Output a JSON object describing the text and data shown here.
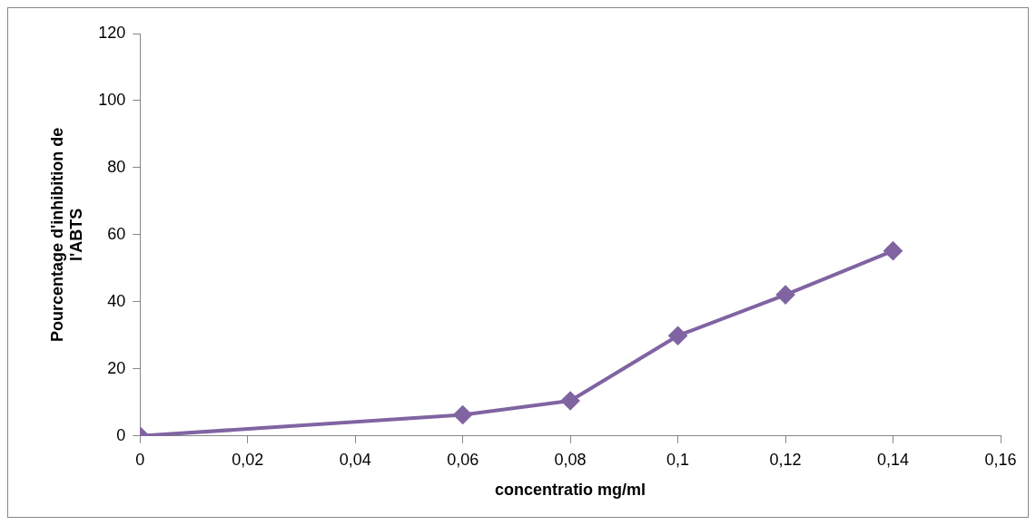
{
  "chart_data": {
    "type": "line",
    "xlabel": "concentratio mg/ml",
    "ylabel": "Pourcentage d'inhibition de l'ABTS",
    "x": [
      0,
      0.06,
      0.08,
      0.1,
      0.12,
      0.14
    ],
    "series": [
      {
        "color": "#8064a2",
        "values": [
          0,
          6.3,
          10.5,
          29.9,
          42.1,
          55.2
        ]
      }
    ],
    "xlim": [
      0,
      0.16
    ],
    "xticks": [
      0,
      {
        "value": 0.02,
        "label": "0,02"
      },
      {
        "value": 0.04,
        "label": "0,04"
      },
      {
        "value": 0.06,
        "label": "0,06"
      },
      {
        "value": 0.08,
        "label": "0,08"
      },
      {
        "value": 0.1,
        "label": "0,1"
      },
      {
        "value": 0.12,
        "label": "0,12"
      },
      {
        "value": 0.14,
        "label": "0,14"
      },
      {
        "value": 0.16,
        "label": "0,16"
      }
    ],
    "ylim": [
      0,
      120
    ],
    "yticks": [
      0,
      20,
      40,
      60,
      80,
      100,
      120
    ],
    "grid": false,
    "legend": false,
    "marker": "diamond",
    "line_style": "solid"
  }
}
